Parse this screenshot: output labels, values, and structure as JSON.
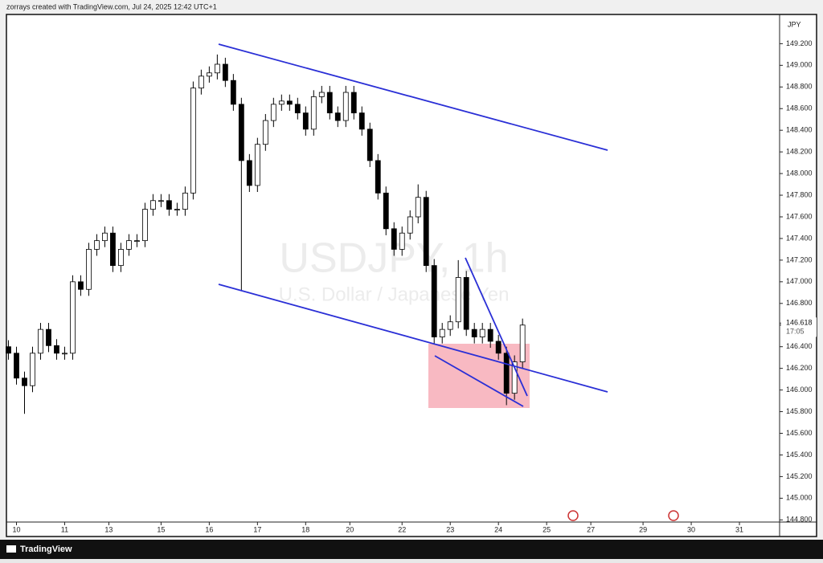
{
  "header": "zorrays created with TradingView.com, Jul 24, 2025 12:42 UTC+1",
  "footer": "TradingView",
  "chart_data": {
    "type": "candlestick",
    "title": "USDJPY, 1h",
    "subtitle": "U.S. Dollar / Japanese Yen",
    "currency": "JPY",
    "x": [
      -4,
      0,
      4,
      8,
      12,
      16,
      20,
      24,
      28,
      32,
      36,
      40,
      44,
      48,
      52,
      56,
      60,
      64,
      68,
      72,
      76,
      80,
      84,
      88,
      92,
      96,
      100,
      104,
      108,
      112,
      116,
      120,
      124,
      128,
      132,
      136,
      140,
      144,
      148,
      152,
      156,
      160,
      164,
      168,
      172,
      176,
      180,
      184,
      188,
      192,
      196,
      200,
      204,
      208,
      212,
      216,
      220,
      224,
      228,
      232,
      236,
      240,
      244,
      248,
      252
    ],
    "open": [
      146.4,
      146.34,
      146.11,
      146.04,
      146.34,
      146.56,
      146.41,
      146.34,
      146.34,
      147.0,
      146.93,
      147.3,
      147.38,
      147.45,
      147.15,
      147.3,
      147.38,
      147.38,
      147.67,
      147.75,
      147.75,
      147.67,
      147.67,
      147.82,
      148.79,
      148.9,
      148.93,
      149.01,
      148.86,
      148.64,
      148.12,
      147.89,
      148.27,
      148.49,
      148.64,
      148.67,
      148.64,
      148.56,
      148.41,
      148.71,
      148.75,
      148.56,
      148.49,
      148.75,
      148.56,
      148.41,
      148.12,
      147.82,
      147.49,
      147.3,
      147.45,
      147.6,
      147.78,
      147.15,
      146.49,
      146.56,
      146.63,
      147.04,
      146.56,
      146.49,
      146.56,
      146.45,
      146.34,
      145.97,
      146.26
    ],
    "high": [
      146.46,
      146.4,
      146.17,
      146.4,
      146.62,
      146.62,
      146.47,
      146.4,
      147.06,
      147.06,
      147.36,
      147.44,
      147.51,
      147.51,
      147.36,
      147.44,
      147.44,
      147.73,
      147.81,
      147.81,
      147.81,
      147.73,
      147.88,
      148.85,
      148.96,
      148.99,
      149.1,
      149.07,
      148.92,
      148.7,
      148.18,
      148.33,
      148.55,
      148.7,
      148.73,
      148.73,
      148.7,
      148.62,
      148.77,
      148.81,
      148.81,
      148.62,
      148.81,
      148.81,
      148.62,
      148.47,
      148.18,
      147.88,
      147.55,
      147.51,
      147.66,
      147.9,
      147.84,
      147.21,
      146.62,
      146.69,
      147.2,
      147.1,
      146.62,
      146.62,
      146.62,
      146.51,
      146.4,
      146.32,
      146.66
    ],
    "low": [
      146.28,
      146.05,
      145.78,
      145.98,
      146.28,
      146.35,
      146.28,
      146.28,
      146.28,
      146.87,
      146.87,
      147.24,
      147.32,
      147.09,
      147.09,
      147.24,
      147.32,
      147.32,
      147.61,
      147.69,
      147.61,
      147.61,
      147.61,
      147.76,
      148.73,
      148.84,
      148.87,
      148.8,
      148.58,
      146.92,
      147.83,
      147.83,
      148.21,
      148.43,
      148.58,
      148.58,
      148.5,
      148.35,
      148.35,
      148.65,
      148.5,
      148.43,
      148.43,
      148.5,
      148.35,
      148.06,
      147.76,
      147.43,
      147.24,
      147.24,
      147.39,
      147.54,
      147.09,
      146.43,
      146.43,
      146.5,
      146.57,
      146.5,
      146.43,
      146.43,
      146.39,
      146.28,
      145.86,
      145.91,
      146.2
    ],
    "close": [
      146.34,
      146.11,
      146.04,
      146.34,
      146.56,
      146.41,
      146.34,
      146.34,
      147.0,
      146.93,
      147.3,
      147.38,
      147.45,
      147.15,
      147.3,
      147.38,
      147.38,
      147.67,
      147.75,
      147.75,
      147.67,
      147.67,
      147.82,
      148.79,
      148.9,
      148.93,
      149.01,
      148.86,
      148.64,
      148.12,
      147.89,
      148.27,
      148.49,
      148.64,
      148.67,
      148.64,
      148.56,
      148.41,
      148.71,
      148.75,
      148.56,
      148.49,
      148.75,
      148.56,
      148.41,
      148.12,
      147.82,
      147.49,
      147.3,
      147.45,
      147.6,
      147.78,
      147.15,
      146.49,
      146.56,
      146.63,
      147.04,
      146.56,
      146.49,
      146.56,
      146.45,
      146.34,
      145.97,
      146.26,
      146.6
    ],
    "up_color": "#ffffff",
    "down_color": "#000000",
    "xlim": [
      -5,
      380
    ],
    "xticks": [
      {
        "value": 0,
        "label": "10"
      },
      {
        "value": 24,
        "label": "11"
      },
      {
        "value": 46,
        "label": "13"
      },
      {
        "value": 72,
        "label": "15"
      },
      {
        "value": 96,
        "label": "16"
      },
      {
        "value": 120,
        "label": "17"
      },
      {
        "value": 144,
        "label": "18"
      },
      {
        "value": 166,
        "label": "20"
      },
      {
        "value": 192,
        "label": "22"
      },
      {
        "value": 216,
        "label": "23"
      },
      {
        "value": 240,
        "label": "24"
      },
      {
        "value": 264,
        "label": "25"
      },
      {
        "value": 286,
        "label": "27"
      },
      {
        "value": 312,
        "label": "29"
      },
      {
        "value": 336,
        "label": "30"
      },
      {
        "value": 360,
        "label": "31"
      }
    ],
    "ylim": [
      144.78,
      149.47
    ],
    "yticks": [
      {
        "value": 144.8,
        "label": "144.800"
      },
      {
        "value": 145.0,
        "label": "145.000"
      },
      {
        "value": 145.2,
        "label": "145.200"
      },
      {
        "value": 145.4,
        "label": "145.400"
      },
      {
        "value": 145.6,
        "label": "145.600"
      },
      {
        "value": 145.8,
        "label": "145.800"
      },
      {
        "value": 146.0,
        "label": "146.000"
      },
      {
        "value": 146.2,
        "label": "146.200"
      },
      {
        "value": 146.4,
        "label": "146.400"
      },
      {
        "value": 146.6,
        "label": "146.600"
      },
      {
        "value": 146.8,
        "label": "146.800"
      },
      {
        "value": 147.0,
        "label": "147.000"
      },
      {
        "value": 147.2,
        "label": "147.200"
      },
      {
        "value": 147.4,
        "label": "147.400"
      },
      {
        "value": 147.6,
        "label": "147.600"
      },
      {
        "value": 147.8,
        "label": "147.800"
      },
      {
        "value": 148.0,
        "label": "148.000"
      },
      {
        "value": 148.2,
        "label": "148.200"
      },
      {
        "value": 148.4,
        "label": "148.400"
      },
      {
        "value": 148.6,
        "label": "148.600"
      },
      {
        "value": 148.8,
        "label": "148.800"
      },
      {
        "value": 149.0,
        "label": "149.000"
      },
      {
        "value": 149.2,
        "label": "149.200"
      }
    ],
    "last_price": {
      "value": 146.618,
      "label": "146.618"
    },
    "countdown": "17:05"
  }
}
